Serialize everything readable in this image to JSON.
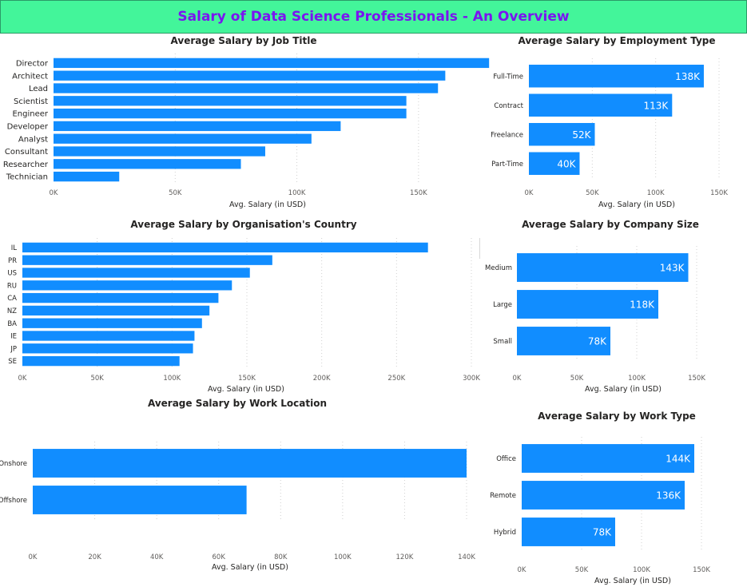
{
  "header": {
    "title": "Salary of Data Science Professionals - An Overview"
  },
  "colors": {
    "bar": "#118dff",
    "header_bg": "#43f59a",
    "header_text": "#7a14f0"
  },
  "chart_data": [
    {
      "id": "job",
      "type": "bar",
      "orientation": "horizontal",
      "title": "Average Salary by Job Title",
      "xlabel": "Avg. Salary (in USD)",
      "ylabel": "",
      "categories": [
        "Director",
        "Architect",
        "Lead",
        "Scientist",
        "Engineer",
        "Developer",
        "Analyst",
        "Consultant",
        "Researcher",
        "Technician"
      ],
      "values": [
        179000,
        161000,
        158000,
        145000,
        145000,
        118000,
        106000,
        87000,
        77000,
        27000
      ],
      "xlim": [
        0,
        175000
      ],
      "ticks": [
        0,
        50000,
        100000,
        150000
      ],
      "tick_labels": [
        "0K",
        "50K",
        "100K",
        "150K"
      ],
      "grid": true,
      "data_labels": []
    },
    {
      "id": "employment",
      "type": "bar",
      "orientation": "horizontal",
      "title": "Average Salary by Employment Type",
      "xlabel": "Avg. Salary (in USD)",
      "ylabel": "",
      "categories": [
        "Full-Time",
        "Contract",
        "Freelance",
        "Part-Time"
      ],
      "values": [
        138000,
        113000,
        52000,
        40000
      ],
      "xlim": [
        0,
        150000
      ],
      "ticks": [
        0,
        50000,
        100000,
        150000
      ],
      "tick_labels": [
        "0K",
        "50K",
        "100K",
        "150K"
      ],
      "grid": true,
      "data_labels": [
        "138K",
        "113K",
        "52K",
        "40K"
      ]
    },
    {
      "id": "country",
      "type": "bar",
      "orientation": "horizontal",
      "title": "Average Salary by Organisation's Country",
      "xlabel": "Avg. Salary (in USD)",
      "ylabel": "",
      "categories": [
        "IL",
        "PR",
        "US",
        "RU",
        "CA",
        "NZ",
        "BA",
        "IE",
        "JP",
        "SE"
      ],
      "values": [
        271000,
        167000,
        152000,
        140000,
        131000,
        125000,
        120000,
        115000,
        114000,
        105000
      ],
      "xlim": [
        0,
        300000
      ],
      "ticks": [
        0,
        50000,
        100000,
        150000,
        200000,
        250000,
        300000
      ],
      "tick_labels": [
        "0K",
        "50K",
        "100K",
        "150K",
        "200K",
        "250K",
        "300K"
      ],
      "grid": true,
      "data_labels": []
    },
    {
      "id": "size",
      "type": "bar",
      "orientation": "horizontal",
      "title": "Average Salary by Company Size",
      "xlabel": "Avg. Salary (in USD)",
      "ylabel": "",
      "categories": [
        "Medium",
        "Large",
        "Small"
      ],
      "values": [
        143000,
        118000,
        78000
      ],
      "xlim": [
        0,
        150000
      ],
      "ticks": [
        0,
        50000,
        100000,
        150000
      ],
      "tick_labels": [
        "0K",
        "50K",
        "100K",
        "150K"
      ],
      "grid": true,
      "data_labels": [
        "143K",
        "118K",
        "78K"
      ]
    },
    {
      "id": "location",
      "type": "bar",
      "orientation": "horizontal",
      "title": "Average Salary by Work Location",
      "xlabel": "Avg. Salary (in USD)",
      "ylabel": "",
      "categories": [
        "Onshore",
        "Offshore"
      ],
      "values": [
        140000,
        69000
      ],
      "xlim": [
        0,
        140000
      ],
      "ticks": [
        0,
        20000,
        40000,
        60000,
        80000,
        100000,
        120000,
        140000
      ],
      "tick_labels": [
        "0K",
        "20K",
        "40K",
        "60K",
        "80K",
        "100K",
        "120K",
        "140K"
      ],
      "grid": true,
      "data_labels": []
    },
    {
      "id": "worktype",
      "type": "bar",
      "orientation": "horizontal",
      "title": "Average Salary by Work Type",
      "xlabel": "Avg. Salary (in USD)",
      "ylabel": "",
      "categories": [
        "Office",
        "Remote",
        "Hybrid"
      ],
      "values": [
        144000,
        136000,
        78000
      ],
      "xlim": [
        0,
        150000
      ],
      "ticks": [
        0,
        50000,
        100000,
        150000
      ],
      "tick_labels": [
        "0K",
        "50K",
        "100K",
        "150K"
      ],
      "grid": true,
      "data_labels": [
        "144K",
        "136K",
        "78K"
      ]
    }
  ]
}
